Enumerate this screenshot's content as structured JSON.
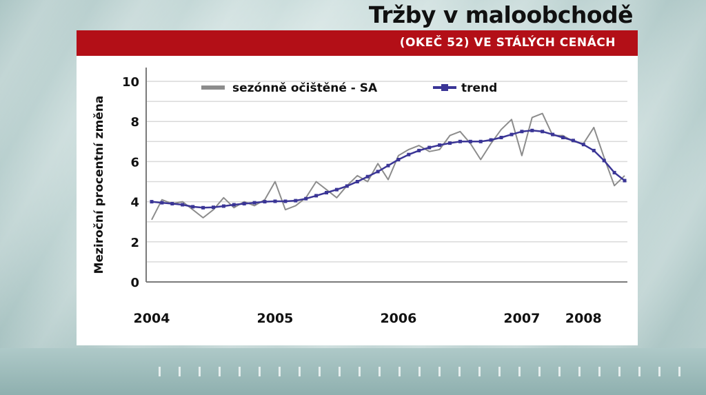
{
  "header": {
    "title": "Tržby v maloobchodě",
    "subtitle": "(OKEČ 52) VE STÁLÝCH CENÁCH"
  },
  "colors": {
    "accent_bar": "#b30f17",
    "sa_series": "#8c8c8c",
    "trend_series": "#3a3596"
  },
  "chart_data": {
    "type": "line",
    "title": "Tržby v maloobchodě",
    "subtitle": "(OKEČ 52) VE STÁLÝCH CENÁCH",
    "ylabel": "Meziroční procentní změna",
    "xlabel": "",
    "ylim": [
      0,
      10
    ],
    "yticks": [
      0,
      2,
      4,
      6,
      8,
      10
    ],
    "grid": true,
    "legend_position": "top",
    "x_tick_labels": [
      {
        "label": "2004",
        "x": 0
      },
      {
        "label": "2005",
        "x": 12
      },
      {
        "label": "2006",
        "x": 24
      },
      {
        "label": "2007",
        "x": 36
      },
      {
        "label": "2008",
        "x": 42
      }
    ],
    "x_count": 47,
    "series": [
      {
        "name": "sezónně očištěné - SA",
        "color": "#8c8c8c",
        "marker": "none",
        "values": [
          3.1,
          4.1,
          3.9,
          4.0,
          3.6,
          3.2,
          3.6,
          4.2,
          3.7,
          4.0,
          3.8,
          4.1,
          5.0,
          3.6,
          3.8,
          4.2,
          5.0,
          4.6,
          4.2,
          4.8,
          5.3,
          5.0,
          5.9,
          5.1,
          6.3,
          6.6,
          6.8,
          6.5,
          6.6,
          7.3,
          7.5,
          6.9,
          6.1,
          6.9,
          7.6,
          8.1,
          6.3,
          8.2,
          8.4,
          7.3,
          7.3,
          7.0,
          6.9,
          7.7,
          6.2,
          4.8,
          5.3
        ]
      },
      {
        "name": "trend",
        "color": "#3a3596",
        "marker": "square",
        "values": [
          4.0,
          3.95,
          3.9,
          3.85,
          3.75,
          3.7,
          3.72,
          3.78,
          3.85,
          3.9,
          3.95,
          4.0,
          4.02,
          4.02,
          4.05,
          4.15,
          4.3,
          4.45,
          4.6,
          4.78,
          5.0,
          5.25,
          5.5,
          5.8,
          6.1,
          6.35,
          6.55,
          6.7,
          6.82,
          6.92,
          7.0,
          7.0,
          7.0,
          7.08,
          7.2,
          7.35,
          7.5,
          7.55,
          7.5,
          7.35,
          7.2,
          7.05,
          6.85,
          6.55,
          6.05,
          5.45,
          5.05
        ]
      }
    ]
  }
}
